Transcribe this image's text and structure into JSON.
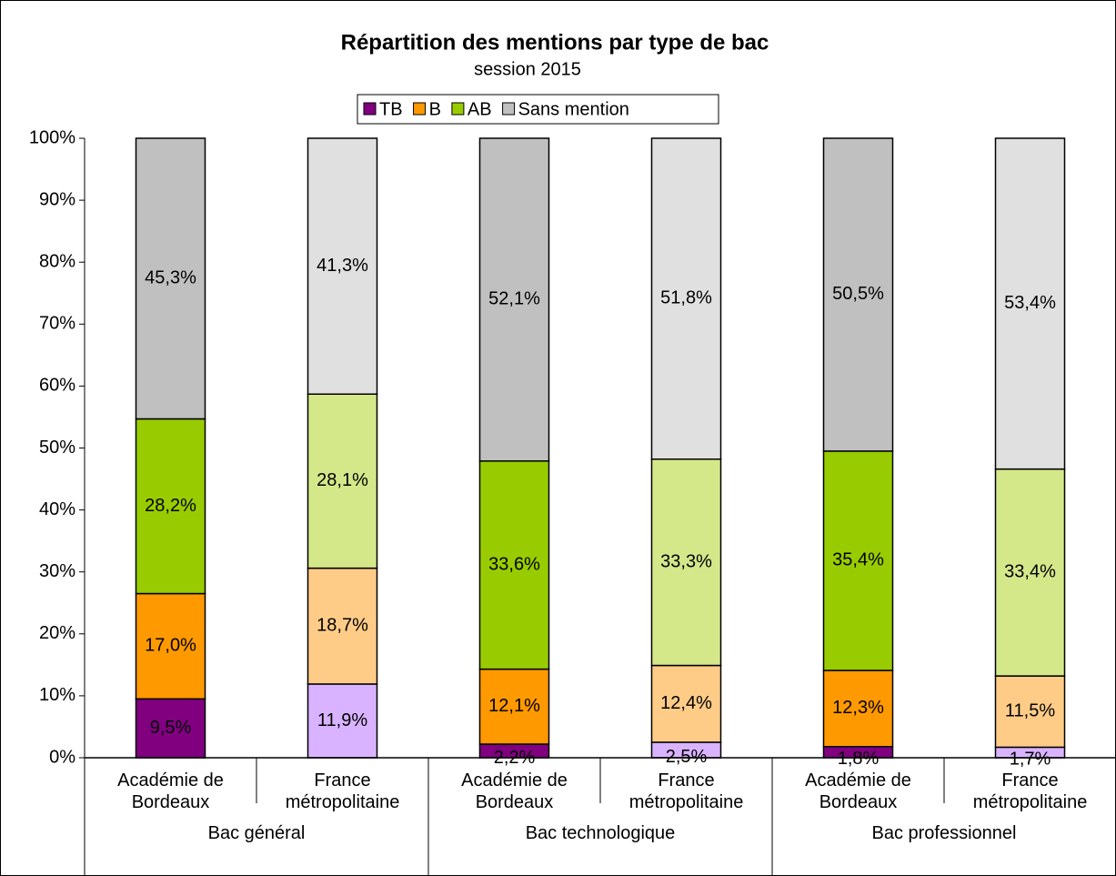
{
  "chart_data": {
    "type": "stacked_bar",
    "title": "Répartition des mentions par type de bac",
    "subtitle": "session 2015",
    "categories": [
      "Académie de Bordeaux",
      "France métropolitaine",
      "Académie de Bordeaux",
      "France métropolitaine",
      "Académie de Bordeaux",
      "France métropolitaine"
    ],
    "groups": [
      "Bac général",
      "Bac technologique",
      "Bac professionnel"
    ],
    "series": [
      {
        "name": "TB",
        "color": "#800080",
        "colors": [
          "#800080",
          "#d9b3ff",
          "#800080",
          "#d9b3ff",
          "#800080",
          "#d9b3ff"
        ],
        "values": [
          9.5,
          11.9,
          2.2,
          2.5,
          1.8,
          1.7
        ],
        "value_labels": [
          "9,5%",
          "11,9%",
          "2,2%",
          "2,5%",
          "1,8%",
          "1,7%"
        ]
      },
      {
        "name": "B",
        "color": "#ff9900",
        "colors": [
          "#ff9900",
          "#ffcc88",
          "#ff9900",
          "#ffcc88",
          "#ff9900",
          "#ffcc88"
        ],
        "values": [
          17.0,
          18.7,
          12.1,
          12.4,
          12.3,
          11.5
        ],
        "value_labels": [
          "17,0%",
          "18,7%",
          "12,1%",
          "12,4%",
          "12,3%",
          "11,5%"
        ]
      },
      {
        "name": "AB",
        "color": "#99cc00",
        "colors": [
          "#99cc00",
          "#d4e88a",
          "#99cc00",
          "#d4e88a",
          "#99cc00",
          "#d4e88a"
        ],
        "values": [
          28.2,
          28.1,
          33.6,
          33.3,
          35.4,
          33.4
        ],
        "value_labels": [
          "28,2%",
          "28,1%",
          "33,6%",
          "33,3%",
          "35,4%",
          "33,4%"
        ]
      },
      {
        "name": "Sans mention",
        "color": "#c0c0c0",
        "colors": [
          "#c0c0c0",
          "#e0e0e0",
          "#c0c0c0",
          "#e0e0e0",
          "#c0c0c0",
          "#e0e0e0"
        ],
        "values": [
          45.3,
          41.3,
          52.1,
          51.8,
          50.5,
          53.4
        ],
        "value_labels": [
          "45,3%",
          "41,3%",
          "52,1%",
          "51,8%",
          "50,5%",
          "53,4%"
        ]
      }
    ],
    "ylim": [
      0,
      100
    ],
    "yticks": [
      {
        "value": 0,
        "label": "0%"
      },
      {
        "value": 10,
        "label": "10%"
      },
      {
        "value": 20,
        "label": "20%"
      },
      {
        "value": 30,
        "label": "30%"
      },
      {
        "value": 40,
        "label": "40%"
      },
      {
        "value": 50,
        "label": "50%"
      },
      {
        "value": 60,
        "label": "60%"
      },
      {
        "value": 70,
        "label": "70%"
      },
      {
        "value": 80,
        "label": "80%"
      },
      {
        "value": 90,
        "label": "90%"
      },
      {
        "value": 100,
        "label": "100%"
      }
    ],
    "legend": "top"
  }
}
